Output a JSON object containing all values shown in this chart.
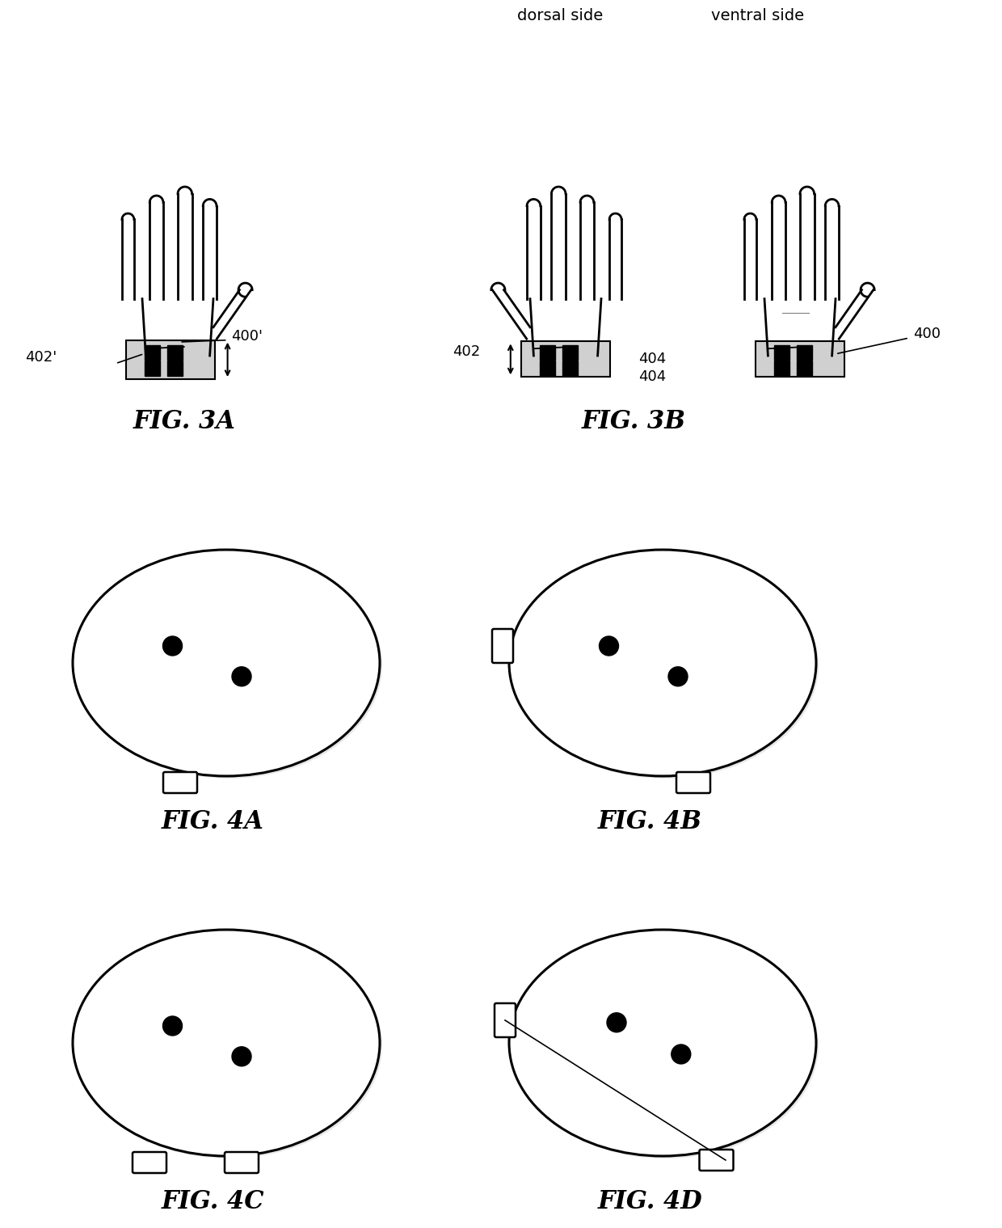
{
  "bg_color": "#ffffff",
  "fig_width": 12.4,
  "fig_height": 15.19,
  "labels": {
    "dorsal_side": "dorsal side",
    "ventral_side": "ventral side",
    "fig3a": "FIG. 3A",
    "fig3b": "FIG. 3B",
    "fig4a": "FIG. 4A",
    "fig4b": "FIG. 4B",
    "fig4c": "FIG. 4C",
    "fig4d": "FIG. 4D",
    "ref_400p": "400'",
    "ref_402p": "402'",
    "ref_400": "400",
    "ref_402": "402",
    "ref_404a": "404",
    "ref_404b": "404"
  },
  "text_color": "#000000",
  "line_color": "#000000",
  "electrode_color": "#000000",
  "band_color": "#888888"
}
